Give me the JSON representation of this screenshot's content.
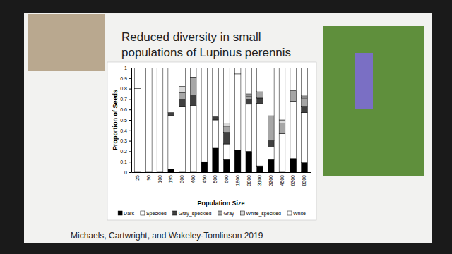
{
  "chart_data": {
    "type": "bar",
    "stacked": true,
    "title": "Reduced diversity in small populations of Lupinus perennis",
    "x_label": "Population Size",
    "y_label": "Proportion of Seeds",
    "annotations": [
      "Michaels, Cartwright, and Wakeley-Tomlinson 2019"
    ],
    "categories": [
      "25",
      "90",
      "100",
      "195",
      "300",
      "400",
      "450",
      "500",
      "600",
      "1800",
      "3000",
      "3100",
      "3200",
      "4500",
      "6300",
      "8300"
    ],
    "series": [
      {
        "name": "Dark",
        "color": "#000000",
        "values": [
          0,
          0,
          0,
          0.03,
          0,
          0,
          0.1,
          0.23,
          0.12,
          0.21,
          0.2,
          0.06,
          0.12,
          0,
          0.13,
          0.09
        ]
      },
      {
        "name": "Speckled",
        "color": "#ffffff",
        "values": [
          0.8,
          1,
          1,
          0.51,
          0.63,
          0.64,
          0.41,
          0.27,
          0.15,
          0.73,
          0.45,
          0.6,
          0.12,
          0.37,
          0.55,
          0.48
        ]
      },
      {
        "name": "Gray_speckled",
        "color": "#404040",
        "values": [
          0,
          0,
          0,
          0.03,
          0.07,
          0.1,
          0,
          0.03,
          0.11,
          0,
          0.05,
          0.05,
          0.06,
          0,
          0,
          0.06
        ]
      },
      {
        "name": "Gray",
        "color": "#a6a6a6",
        "values": [
          0,
          0,
          0,
          0,
          0.06,
          0.17,
          0,
          0,
          0.06,
          0,
          0.03,
          0.06,
          0.24,
          0.1,
          0.1,
          0.08
        ]
      },
      {
        "name": "White_speckled",
        "color": "#d9d9d9",
        "values": [
          0,
          0,
          0,
          0,
          0.06,
          0,
          0,
          0,
          0.03,
          0,
          0.02,
          0,
          0,
          0.03,
          0,
          0.02
        ]
      },
      {
        "name": "White",
        "color": "#ffffff",
        "values": [
          0.2,
          0,
          0,
          0.43,
          0.18,
          0.09,
          0.49,
          0.47,
          0.53,
          0.06,
          0.25,
          0.23,
          0.46,
          0.5,
          0.22,
          0.27
        ]
      }
    ],
    "ylim": [
      0,
      1
    ],
    "yticks": [
      0,
      0.1,
      0.2,
      0.3,
      0.4,
      0.5,
      0.6,
      0.7,
      0.8,
      0.9,
      1
    ],
    "legend": "bottom",
    "grid": false
  }
}
